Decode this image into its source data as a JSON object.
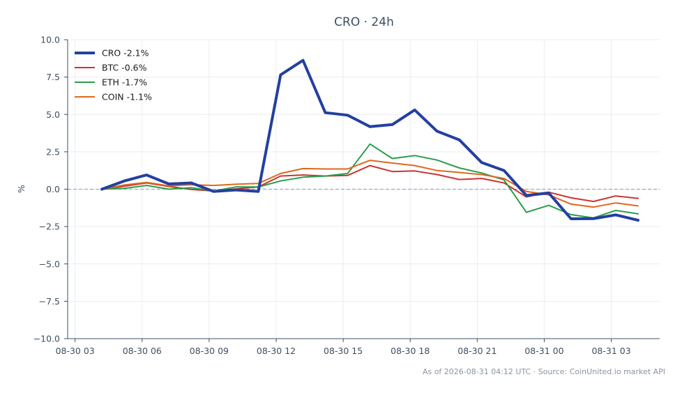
{
  "chart_data": {
    "type": "line",
    "title": "CRO · 24h",
    "xlabel": "",
    "ylabel": "%",
    "ylim": [
      -10,
      10
    ],
    "y_ticks": [
      10.0,
      7.5,
      5.0,
      2.5,
      0.0,
      -2.5,
      -5.0,
      -7.5,
      -10.0
    ],
    "y_tick_labels": [
      "10.0",
      "7.5",
      "5.0",
      "2.5",
      "0.0",
      "−2.5",
      "−5.0",
      "−7.5",
      "−10.0"
    ],
    "x_range": [
      "2026-08-30 02:40",
      "2026-08-31 05:10"
    ],
    "x_ticks": [
      "2026-08-30 03:00",
      "2026-08-30 06:00",
      "2026-08-30 09:00",
      "2026-08-30 12:00",
      "2026-08-30 15:00",
      "2026-08-30 18:00",
      "2026-08-30 21:00",
      "2026-08-31 00:00",
      "2026-08-31 03:00"
    ],
    "x_tick_labels": [
      "08-30 03",
      "08-30 06",
      "08-30 09",
      "08-30 12",
      "08-30 15",
      "08-30 18",
      "08-30 21",
      "08-31 00",
      "08-31 03"
    ],
    "x": [
      "2026-08-30 04:12",
      "2026-08-30 05:12",
      "2026-08-30 06:12",
      "2026-08-30 07:12",
      "2026-08-30 08:12",
      "2026-08-30 09:12",
      "2026-08-30 10:12",
      "2026-08-30 11:12",
      "2026-08-30 12:12",
      "2026-08-30 13:12",
      "2026-08-30 14:12",
      "2026-08-30 15:12",
      "2026-08-30 16:12",
      "2026-08-30 17:12",
      "2026-08-30 18:12",
      "2026-08-30 19:12",
      "2026-08-30 20:12",
      "2026-08-30 21:12",
      "2026-08-30 22:12",
      "2026-08-30 23:12",
      "2026-08-31 00:12",
      "2026-08-31 01:12",
      "2026-08-31 02:12",
      "2026-08-31 03:12",
      "2026-08-31 04:12"
    ],
    "series": [
      {
        "name": "CRO -2.1%",
        "color": "#2340a0",
        "width": 4,
        "values": [
          0.0,
          0.55,
          0.95,
          0.35,
          0.42,
          -0.15,
          -0.05,
          -0.15,
          7.65,
          8.62,
          5.12,
          4.95,
          4.18,
          4.32,
          5.3,
          3.88,
          3.3,
          1.78,
          1.25,
          -0.42,
          -0.25,
          -1.98,
          -1.97,
          -1.72,
          -2.08
        ]
      },
      {
        "name": "BTC -0.6%",
        "color": "#cc3333",
        "width": 2,
        "values": [
          0.0,
          0.2,
          0.42,
          0.18,
          -0.02,
          -0.12,
          0.02,
          0.15,
          0.88,
          0.95,
          0.88,
          0.92,
          1.58,
          1.18,
          1.22,
          0.98,
          0.65,
          0.72,
          0.42,
          -0.52,
          -0.2,
          -0.58,
          -0.82,
          -0.45,
          -0.62
        ]
      },
      {
        "name": "ETH -1.7%",
        "color": "#2a9d4a",
        "width": 2,
        "values": [
          0.0,
          0.05,
          0.25,
          0.0,
          0.1,
          -0.12,
          0.15,
          0.15,
          0.55,
          0.8,
          0.88,
          1.05,
          3.02,
          2.05,
          2.25,
          1.95,
          1.42,
          1.08,
          0.62,
          -1.55,
          -1.08,
          -1.7,
          -1.92,
          -1.42,
          -1.65
        ]
      },
      {
        "name": "COIN -1.1%",
        "color": "#e0661e",
        "width": 2,
        "values": [
          0.0,
          0.28,
          0.45,
          0.22,
          0.3,
          0.25,
          0.33,
          0.38,
          1.05,
          1.38,
          1.35,
          1.35,
          1.93,
          1.75,
          1.58,
          1.25,
          1.12,
          0.98,
          0.72,
          -0.15,
          -0.38,
          -1.0,
          -1.2,
          -0.92,
          -1.12
        ]
      }
    ],
    "reference_line": {
      "y": 0,
      "style": "dashed",
      "color": "#8a9bb5"
    },
    "grid": true,
    "legend": "top-left"
  },
  "footer": {
    "text": "As of 2026-08-31 04:12 UTC · Source: CoinUnited.io market API"
  }
}
